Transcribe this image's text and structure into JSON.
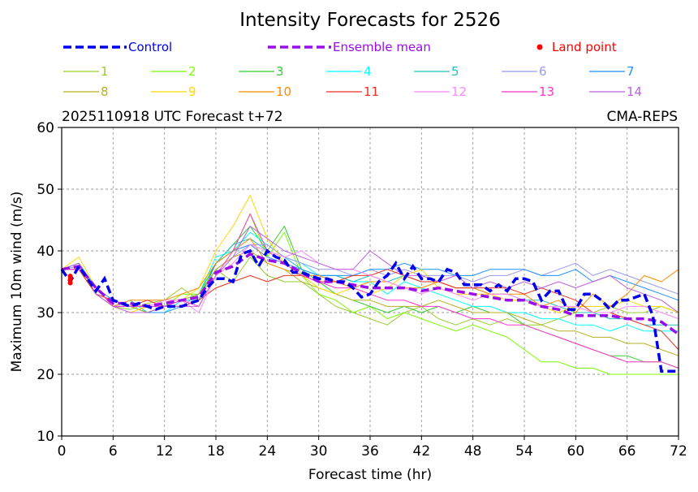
{
  "chart_data": {
    "type": "line",
    "title": "Intensity Forecasts for 2526",
    "subtitle_left": "2025110918 UTC Forecast t+72",
    "subtitle_right": "CMA-REPS",
    "xlabel": "Forecast time (hr)",
    "ylabel": "Maximum 10m wind (m/s)",
    "xlim": [
      0,
      72
    ],
    "ylim": [
      10,
      60
    ],
    "xticks": [
      0,
      6,
      12,
      18,
      24,
      30,
      36,
      42,
      48,
      54,
      60,
      66,
      72
    ],
    "yticks": [
      10,
      20,
      30,
      40,
      50,
      60
    ],
    "grid": true,
    "legend_position": "top",
    "legend": {
      "control": {
        "label": "Control",
        "color": "#0000ee"
      },
      "mean": {
        "label": "Ensemble mean",
        "color": "#9a0eea"
      },
      "land": {
        "label": "Land point",
        "color": "#ff0000"
      }
    },
    "control": {
      "x": [
        0,
        1,
        2,
        3,
        4,
        5,
        6,
        7,
        8,
        9,
        10,
        11,
        12,
        13,
        14,
        15,
        16,
        17,
        18,
        19,
        20,
        21,
        22,
        23,
        24,
        25,
        26,
        27,
        28,
        29,
        30,
        31,
        32,
        33,
        34,
        35,
        36,
        37,
        38,
        39,
        40,
        41,
        42,
        43,
        44,
        45,
        46,
        47,
        48,
        49,
        50,
        51,
        52,
        53,
        54,
        55,
        56,
        57,
        58,
        59,
        60,
        61,
        62,
        63,
        64,
        65,
        66,
        67,
        68,
        69,
        70,
        71,
        72
      ],
      "values": [
        37,
        35,
        37.5,
        35.5,
        33.5,
        35.5,
        32,
        31.5,
        31,
        31.5,
        31,
        30.5,
        31,
        31,
        31,
        31.5,
        32,
        34,
        35.5,
        35.5,
        35,
        39.5,
        40,
        37.5,
        40,
        39,
        38.5,
        36.5,
        36.5,
        36,
        35.5,
        35.5,
        35,
        35,
        34,
        32.5,
        33,
        35,
        36,
        38,
        35.5,
        37.5,
        35.5,
        35.5,
        35,
        37,
        36.5,
        34.5,
        34.5,
        34.5,
        33.5,
        34.5,
        33.5,
        35.5,
        35.5,
        35,
        32,
        33.5,
        33.5,
        30.5,
        30.5,
        33,
        33,
        32,
        30.5,
        32,
        32,
        32.5,
        33,
        29.5,
        20.5,
        20.5,
        20.5
      ]
    },
    "ensemble_mean": {
      "x": [
        0,
        2,
        4,
        6,
        8,
        10,
        12,
        14,
        16,
        18,
        20,
        22,
        24,
        26,
        28,
        30,
        32,
        34,
        36,
        38,
        40,
        42,
        44,
        46,
        48,
        50,
        52,
        54,
        56,
        58,
        60,
        62,
        64,
        66,
        68,
        70,
        72
      ],
      "values": [
        37,
        37.5,
        34,
        31.5,
        31.5,
        31,
        31.5,
        32,
        32.5,
        36.5,
        37.5,
        39.5,
        38.5,
        38,
        36.5,
        35,
        35,
        34.5,
        34,
        34,
        34,
        33.5,
        34,
        33.5,
        33,
        32.5,
        32,
        32,
        31,
        30.5,
        29.5,
        29.5,
        29.5,
        29,
        29,
        28.5,
        26.5
      ]
    },
    "land_points": {
      "x": [
        1,
        1,
        1
      ],
      "values": [
        34.8,
        35.4,
        35.9
      ]
    },
    "members": [
      {
        "name": "1",
        "color": "#9acd32",
        "values": [
          37,
          37.5,
          34,
          31,
          30.5,
          31.5,
          32,
          34,
          32,
          37,
          35,
          39,
          36,
          35,
          35,
          33,
          31,
          30,
          29,
          28,
          30,
          31,
          29,
          28,
          29,
          28,
          29,
          28,
          28,
          29,
          30,
          30,
          31,
          30,
          30,
          31,
          30
        ]
      },
      {
        "name": "2",
        "color": "#7cfc00",
        "values": [
          37,
          38,
          33,
          31,
          31,
          30,
          31,
          33,
          33,
          38,
          40,
          46,
          39,
          43,
          36,
          33,
          32,
          30,
          31,
          29,
          30,
          29,
          28,
          27,
          28,
          27,
          26,
          24,
          22,
          22,
          21,
          21,
          20,
          20,
          20,
          20,
          20
        ]
      },
      {
        "name": "3",
        "color": "#32cd32",
        "values": [
          37,
          37,
          34,
          31,
          31,
          30,
          31,
          32,
          33,
          38,
          41,
          44,
          40,
          44,
          37,
          35,
          33,
          32,
          31,
          30,
          31,
          30,
          31,
          30,
          31,
          30,
          30,
          28,
          27,
          26,
          25,
          24,
          23,
          23,
          22,
          22,
          21
        ]
      },
      {
        "name": "4",
        "color": "#00ffff",
        "values": [
          37,
          38,
          34,
          31,
          31,
          30,
          30,
          32,
          33,
          39,
          40,
          43,
          41,
          39,
          38,
          36,
          36,
          35,
          35,
          33,
          35,
          34,
          33,
          32,
          31,
          31,
          30,
          30,
          29,
          29,
          28,
          28,
          27,
          28,
          27,
          27,
          27
        ]
      },
      {
        "name": "5",
        "color": "#20c0c0",
        "values": [
          37,
          37,
          34,
          31,
          32,
          30,
          31,
          32,
          32,
          38,
          41,
          42,
          40,
          39,
          37,
          36,
          36,
          35,
          36,
          35,
          36,
          35,
          35,
          34,
          34,
          33,
          33,
          32,
          32,
          31,
          30,
          30,
          29,
          29,
          28,
          28,
          28
        ]
      },
      {
        "name": "6",
        "color": "#9999ee",
        "values": [
          37,
          37.5,
          34,
          31,
          31,
          31,
          31,
          31,
          33,
          37,
          39,
          41,
          41,
          39,
          38,
          37,
          37,
          36,
          37,
          36,
          37,
          36,
          36,
          36,
          35,
          36,
          36,
          37,
          36,
          37,
          38,
          36,
          37,
          36,
          35,
          34,
          33
        ]
      },
      {
        "name": "7",
        "color": "#1e90ff",
        "values": [
          37,
          38,
          34,
          32,
          31,
          30,
          30,
          31,
          32,
          38,
          40,
          41,
          39,
          38,
          37,
          36,
          36,
          36,
          37,
          37,
          38,
          37,
          37,
          36,
          36,
          37,
          37,
          37,
          36,
          36,
          37,
          35,
          36,
          35,
          34,
          33,
          32
        ]
      },
      {
        "name": "8",
        "color": "#b8b020",
        "values": [
          37,
          37,
          33,
          32,
          31,
          30,
          31,
          32,
          33,
          37,
          39,
          40,
          38,
          37,
          35,
          34,
          33,
          32,
          32,
          31,
          31,
          31,
          32,
          31,
          30,
          30,
          30,
          29,
          28,
          27,
          27,
          26,
          26,
          25,
          25,
          24,
          23
        ]
      },
      {
        "name": "9",
        "color": "#ffd700",
        "values": [
          37,
          39,
          34,
          31,
          30,
          31,
          32,
          32,
          34,
          40,
          44,
          49,
          42,
          38,
          36,
          34,
          33,
          34,
          33,
          34,
          36,
          37,
          34,
          33,
          33,
          33,
          32,
          32,
          31,
          30,
          31,
          31,
          31,
          32,
          31,
          31,
          30
        ]
      },
      {
        "name": "10",
        "color": "#ff8c00",
        "values": [
          37,
          37,
          33,
          31,
          32,
          32,
          32,
          33,
          34,
          38,
          40,
          42,
          38,
          37,
          36,
          36,
          35,
          34,
          35,
          35,
          34,
          34,
          35,
          34,
          34,
          33,
          33,
          33,
          31,
          32,
          30,
          33,
          31,
          33,
          36,
          35,
          37
        ]
      },
      {
        "name": "11",
        "color": "#ee3020",
        "values": [
          37,
          37,
          33,
          32,
          31,
          32,
          31,
          31,
          32,
          34,
          35,
          36,
          35,
          36,
          36,
          35,
          35,
          36,
          36,
          37,
          36,
          35,
          35,
          34,
          34,
          34,
          34,
          33,
          34,
          33,
          32,
          30,
          30,
          29,
          28,
          27,
          24
        ]
      },
      {
        "name": "12",
        "color": "#ff88ff",
        "values": [
          37,
          37,
          34,
          31,
          31,
          31,
          32,
          32,
          30,
          36,
          38,
          41,
          40,
          39,
          40,
          38,
          37,
          37,
          36,
          35,
          34,
          33,
          34,
          33,
          32,
          33,
          33,
          32,
          31,
          31,
          31,
          30,
          30,
          31,
          31,
          30,
          29
        ]
      },
      {
        "name": "13",
        "color": "#ff33cc",
        "values": [
          37,
          37,
          34,
          31,
          31,
          31,
          31,
          32,
          31,
          36,
          40,
          46,
          40,
          38,
          36,
          35,
          34,
          34,
          33,
          32,
          32,
          31,
          31,
          30,
          29,
          29,
          28,
          28,
          27,
          26,
          25,
          24,
          23,
          22,
          22,
          22,
          21
        ]
      },
      {
        "name": "14",
        "color": "#c060e0",
        "values": [
          37,
          38,
          33,
          31,
          30,
          30,
          31,
          31,
          31,
          36,
          39,
          44,
          42,
          40,
          39,
          38,
          37,
          37,
          40,
          38,
          36,
          36,
          35,
          36,
          34,
          35,
          34,
          35,
          34,
          35,
          34,
          35,
          36,
          34,
          33,
          32,
          30
        ]
      }
    ]
  }
}
